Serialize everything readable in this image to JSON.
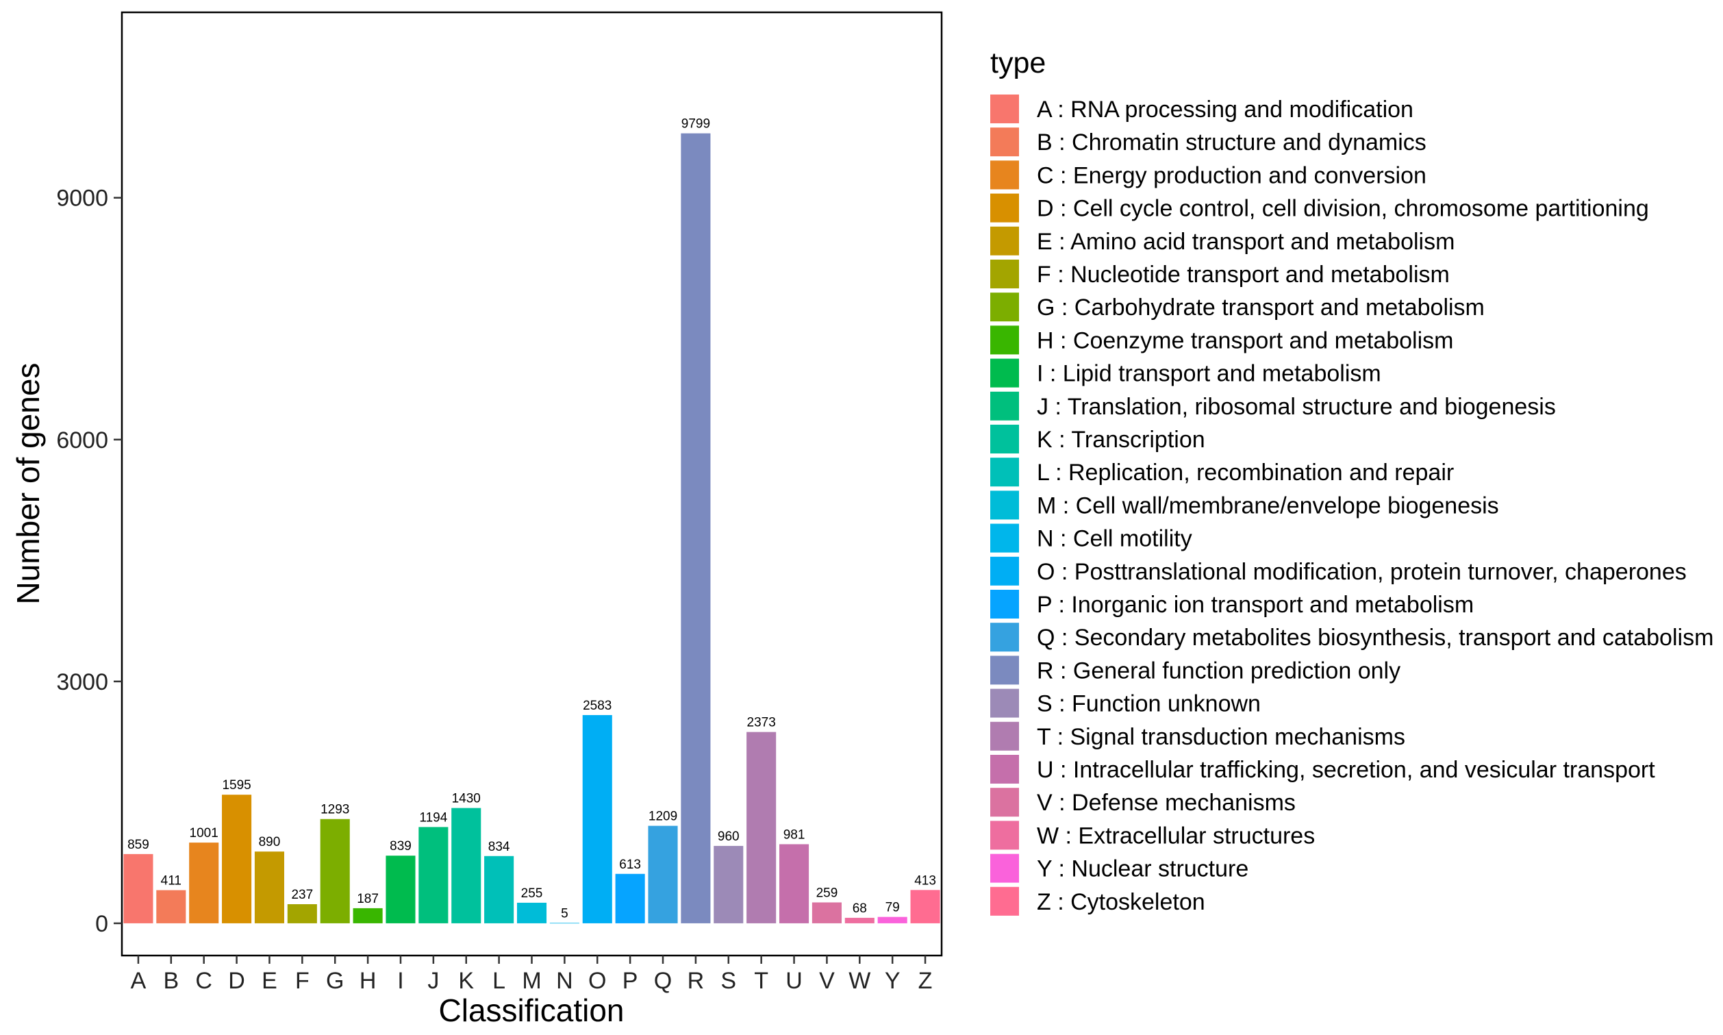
{
  "chart_data": {
    "type": "bar",
    "title": "",
    "xlabel": "Classification",
    "ylabel": "Number of genes",
    "ylim": [
      -400,
      11300
    ],
    "yticks": [
      0,
      3000,
      6000,
      9000
    ],
    "categories": [
      "A",
      "B",
      "C",
      "D",
      "E",
      "F",
      "G",
      "H",
      "I",
      "J",
      "K",
      "L",
      "M",
      "N",
      "O",
      "P",
      "Q",
      "R",
      "S",
      "T",
      "U",
      "V",
      "W",
      "Y",
      "Z"
    ],
    "values": [
      859,
      411,
      1001,
      1595,
      890,
      237,
      1293,
      187,
      839,
      1194,
      1430,
      834,
      255,
      5,
      2583,
      613,
      1209,
      9799,
      960,
      2373,
      981,
      259,
      68,
      79,
      413
    ],
    "colors": [
      "#F8766D",
      "#F37B59",
      "#E7851E",
      "#D89000",
      "#C49A00",
      "#A3A500",
      "#7CAE00",
      "#39B600",
      "#00BB4E",
      "#00BF7D",
      "#00C19C",
      "#00C0B8",
      "#00BCD8",
      "#00B6EB",
      "#00AEF4",
      "#06A4FF",
      "#35A2E0",
      "#7B8ABF",
      "#9C8AB7",
      "#B07CB0",
      "#C56FAB",
      "#DB72A0",
      "#EE6E9F",
      "#FA62DB",
      "#FF6C91"
    ],
    "legend": {
      "title": "type",
      "position": "right",
      "entries": [
        "A : RNA processing and modification",
        "B : Chromatin structure and dynamics",
        "C : Energy production and conversion",
        "D : Cell cycle control, cell division, chromosome partitioning",
        "E : Amino acid transport and metabolism",
        "F : Nucleotide transport and metabolism",
        "G : Carbohydrate transport and metabolism",
        "H : Coenzyme transport and metabolism",
        "I : Lipid transport and metabolism",
        "J : Translation, ribosomal structure and biogenesis",
        "K : Transcription",
        "L : Replication, recombination and repair",
        "M : Cell wall/membrane/envelope biogenesis",
        "N : Cell motility",
        "O : Posttranslational modification, protein turnover, chaperones",
        "P : Inorganic ion transport and metabolism",
        "Q : Secondary metabolites biosynthesis, transport and catabolism",
        "R : General function prediction only",
        "S : Function unknown",
        "T : Signal transduction mechanisms",
        "U : Intracellular trafficking, secretion, and vesicular transport",
        "V : Defense mechanisms",
        "W : Extracellular structures",
        "Y : Nuclear structure",
        "Z : Cytoskeleton"
      ]
    },
    "grid": false
  }
}
